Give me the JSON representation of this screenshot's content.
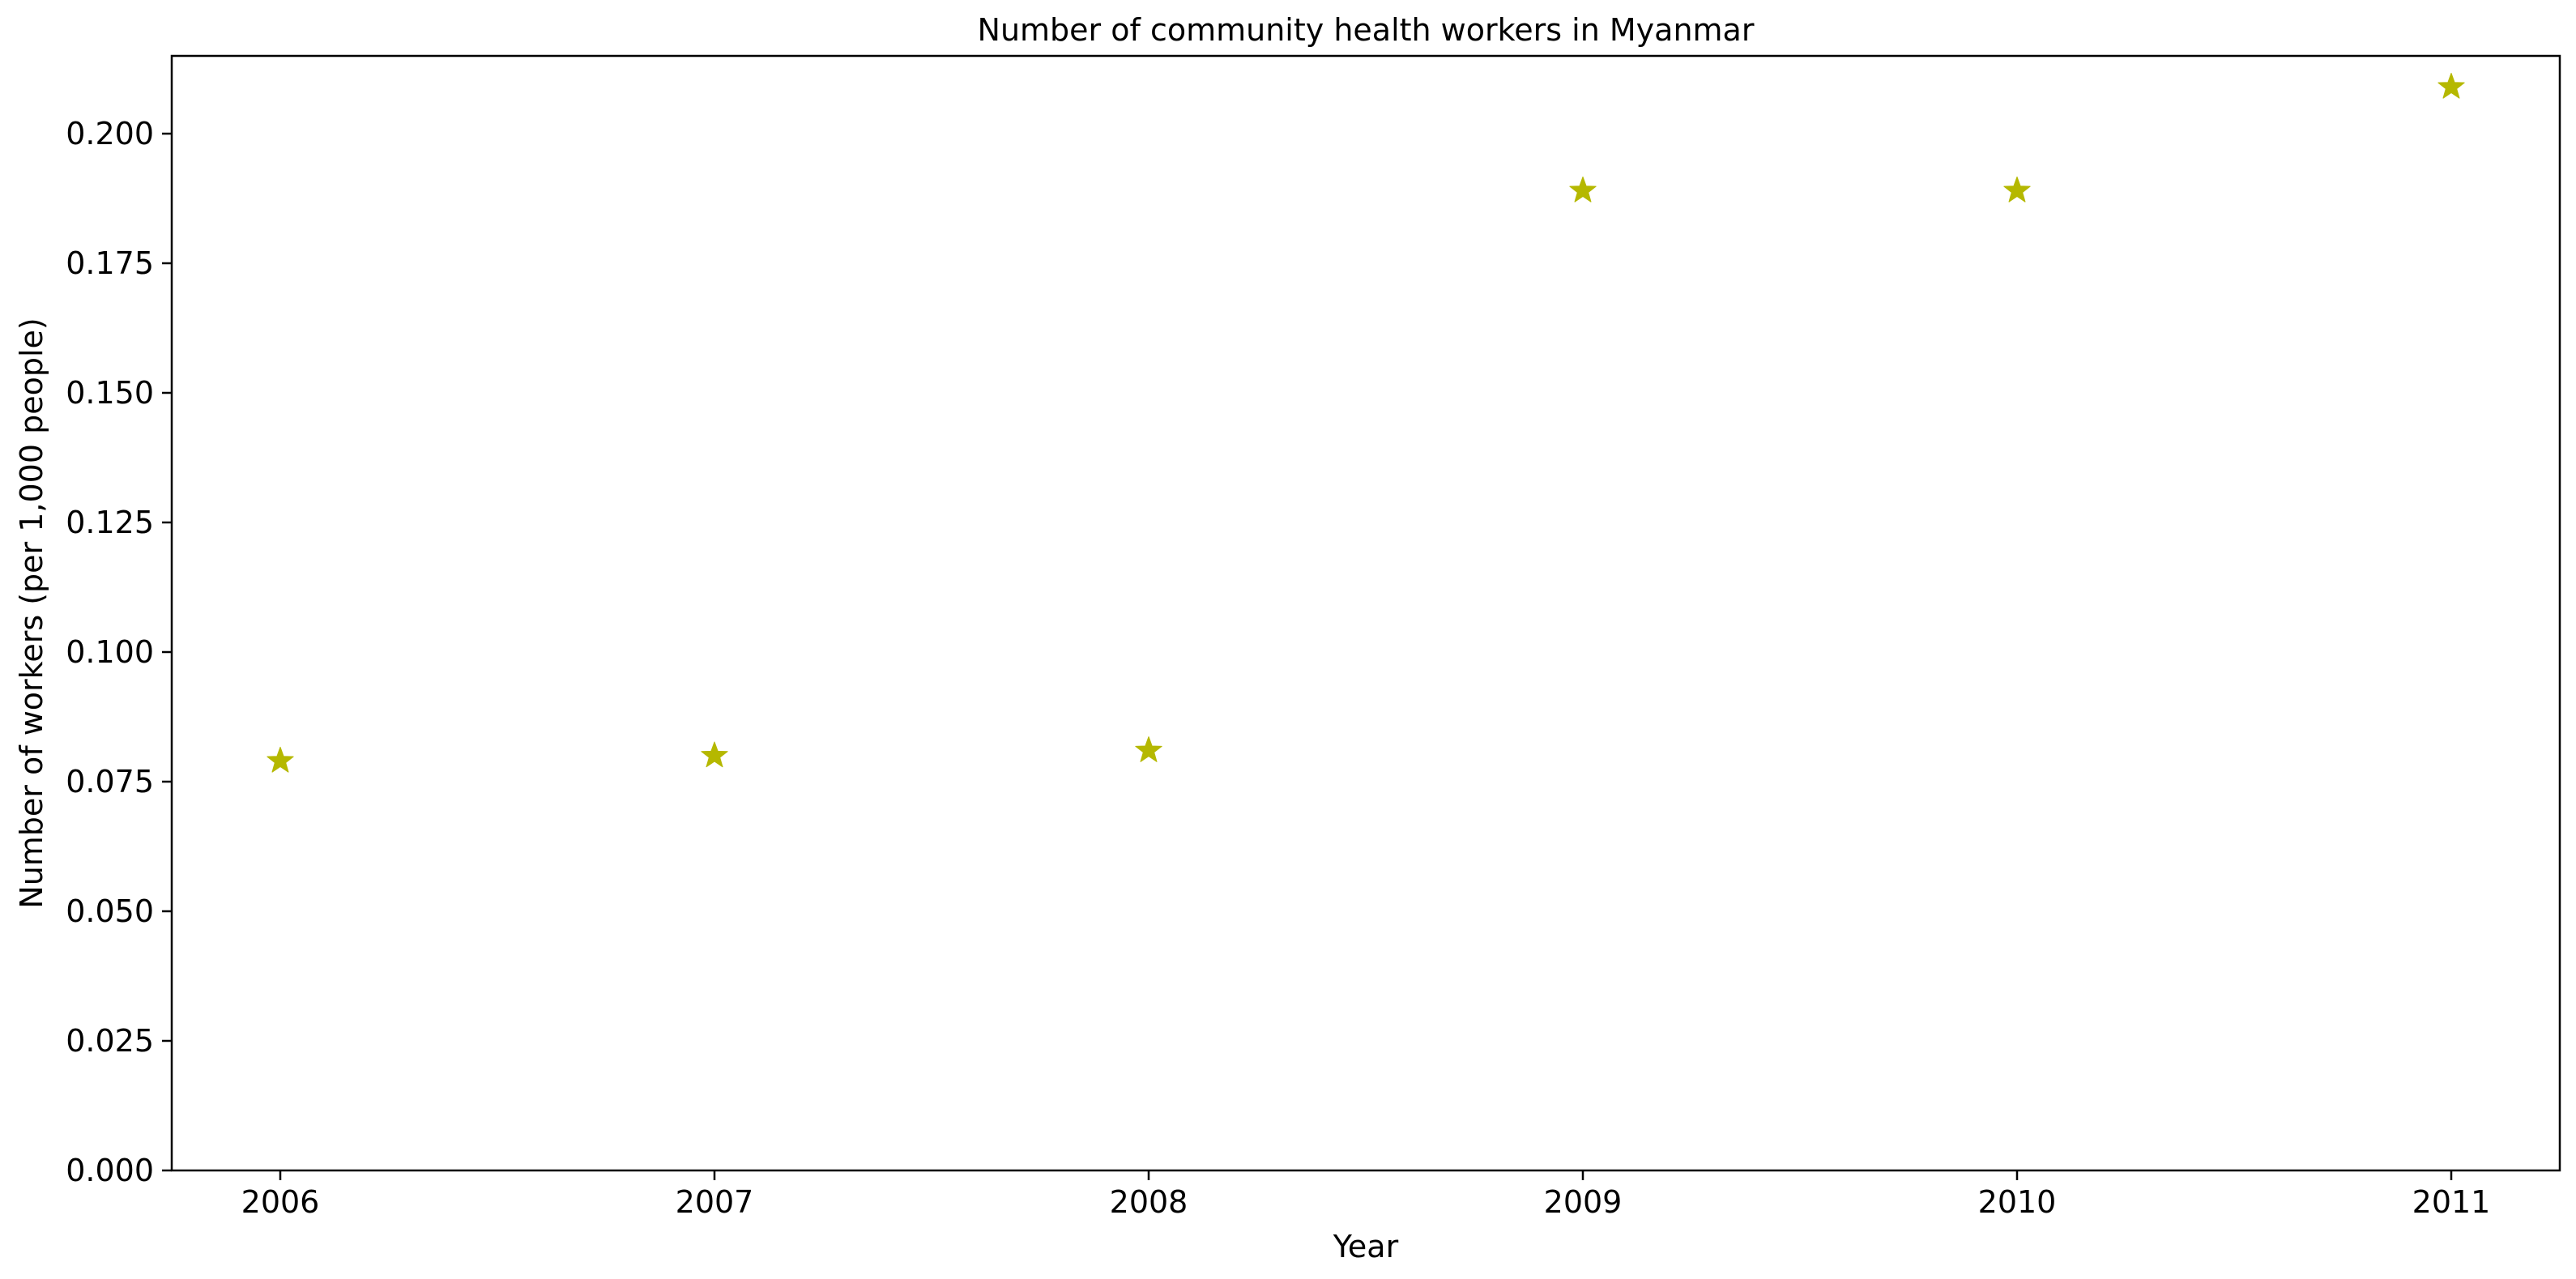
{
  "chart_data": {
    "type": "scatter",
    "title": "Number of community health workers in Myanmar",
    "xlabel": "Year",
    "ylabel": "Number of workers (per 1,000 people)",
    "x": [
      2006,
      2007,
      2008,
      2009,
      2010,
      2011
    ],
    "xticks": [
      "2006",
      "2007",
      "2008",
      "2009",
      "2010",
      "2011"
    ],
    "xlim": [
      2005.75,
      2011.25
    ],
    "yticks": [
      "0.000",
      "0.025",
      "0.050",
      "0.075",
      "0.100",
      "0.125",
      "0.150",
      "0.175",
      "0.200"
    ],
    "ylim": [
      0,
      0.215
    ],
    "series": [
      {
        "values": [
          0.079,
          0.08,
          0.081,
          0.189,
          0.189,
          0.209
        ],
        "color": "#b5b800",
        "marker": "star"
      }
    ],
    "grid": false,
    "legend": "none"
  }
}
